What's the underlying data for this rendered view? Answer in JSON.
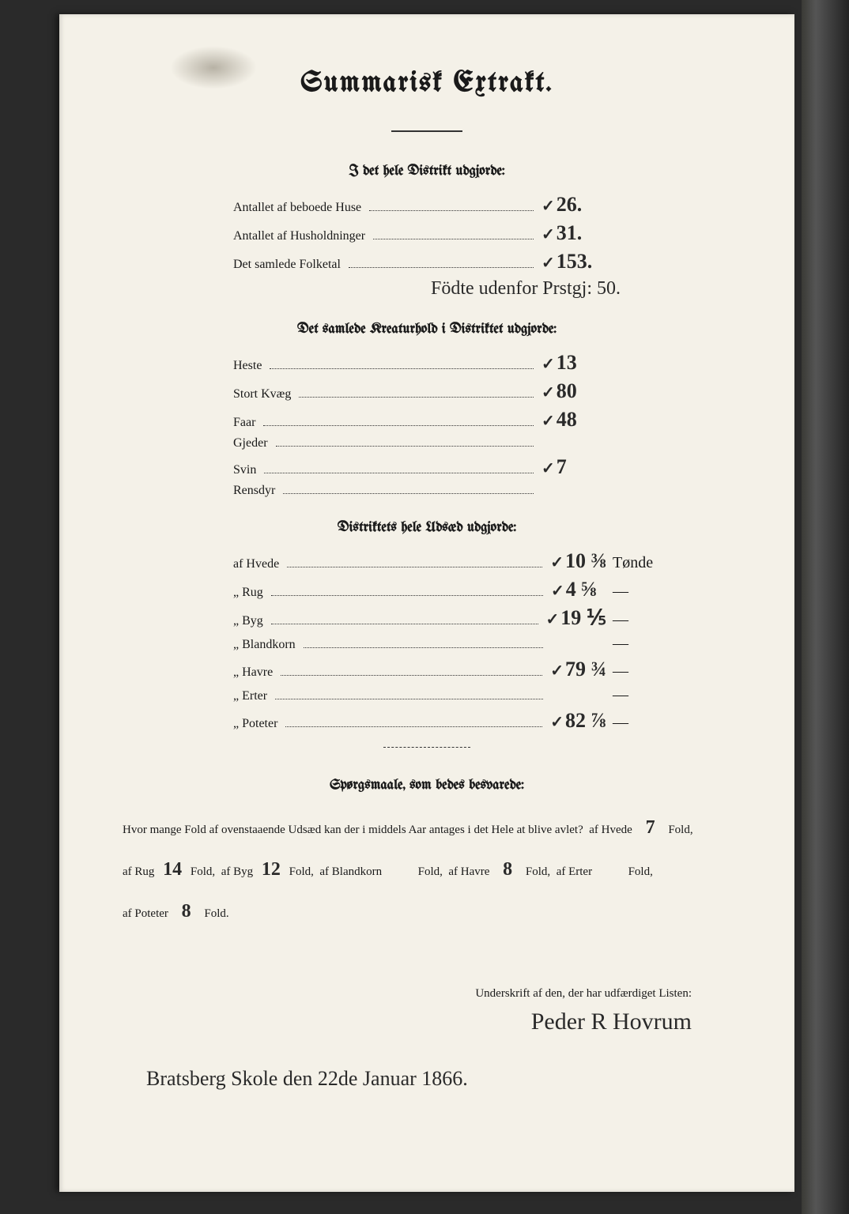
{
  "title": "Summarisk Extrakt.",
  "section1": {
    "heading": "I det hele Distrikt udgjorde:",
    "rows": [
      {
        "label": "Antallet af beboede Huse",
        "value": "26."
      },
      {
        "label": "Antallet af Husholdninger",
        "value": "31."
      },
      {
        "label": "Det samlede Folketal",
        "value": "153."
      }
    ],
    "extra_hand": "Födte udenfor Prstgj: 50."
  },
  "section2": {
    "heading": "Det samlede Kreaturhold i Distriktet udgjorde:",
    "rows": [
      {
        "label": "Heste",
        "value": "13"
      },
      {
        "label": "Stort Kvæg",
        "value": "80"
      },
      {
        "label": "Faar",
        "value": "48"
      },
      {
        "label": "Gjeder",
        "value": ""
      },
      {
        "label": "Svin",
        "value": "7"
      },
      {
        "label": "Rensdyr",
        "value": ""
      }
    ]
  },
  "section3": {
    "heading": "Distriktets hele Udsæd udgjorde:",
    "rows": [
      {
        "label": "af Hvede",
        "value": "10 ⅜",
        "unit": "Tønde"
      },
      {
        "label": "„ Rug",
        "value": "4 ⅝",
        "unit": "—"
      },
      {
        "label": "„ Byg",
        "value": "19 ⅕",
        "unit": "—"
      },
      {
        "label": "„ Blandkorn",
        "value": "",
        "unit": "—"
      },
      {
        "label": "„ Havre",
        "value": "79 ¾",
        "unit": "—"
      },
      {
        "label": "„ Erter",
        "value": "",
        "unit": "—"
      },
      {
        "label": "„ Poteter",
        "value": "82 ⅞",
        "unit": "—"
      }
    ]
  },
  "questions": {
    "heading": "Spørgsmaale, som bedes besvarede:",
    "lead": "Hvor mange Fold af ovenstaaende Udsæd kan der i middels Aar antages i det Hele at blive avlet?",
    "fields": {
      "hvede": "7",
      "rug": "14",
      "byg": "12",
      "blandkorn": "",
      "havre": "8",
      "erter": "",
      "poteter": "8"
    },
    "labels": {
      "hvede": "af Hvede",
      "rug": "af Rug",
      "byg": "af Byg",
      "blandkorn": "af Blandkorn",
      "havre": "af Havre",
      "erter": "af Erter",
      "poteter": "af Poteter",
      "fold": "Fold,",
      "fold_end": "Fold."
    }
  },
  "signblock": {
    "caption": "Underskrift af den, der har udfærdiget Listen:",
    "signature": "Peder R Hovrum"
  },
  "placedate": "Bratsberg Skole den 22de Januar 1866."
}
